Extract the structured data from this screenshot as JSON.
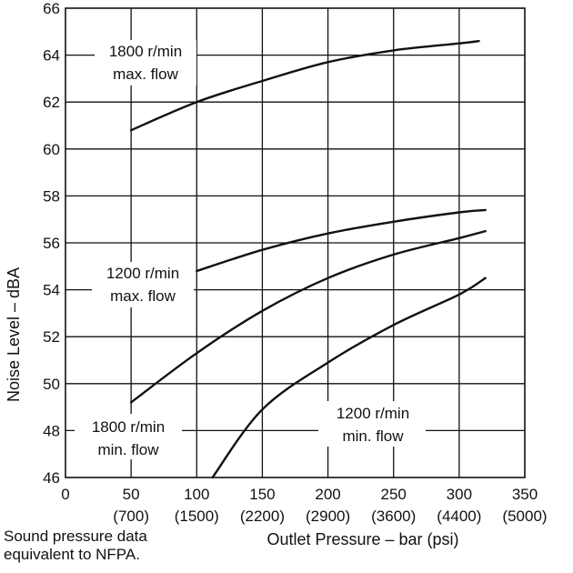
{
  "chart_data": {
    "type": "line",
    "xlabel": "Outlet Pressure – bar (psi)",
    "ylabel": "Noise Level – dBA",
    "xlim": [
      0,
      350
    ],
    "ylim": [
      46,
      66
    ],
    "grid": "horizontal",
    "x_ticks": [
      {
        "value": 0,
        "label": "0",
        "psi": ""
      },
      {
        "value": 50,
        "label": "50",
        "psi": "(700)"
      },
      {
        "value": 100,
        "label": "100",
        "psi": "(1500)"
      },
      {
        "value": 150,
        "label": "150",
        "psi": "(2200)"
      },
      {
        "value": 200,
        "label": "200",
        "psi": "(2900)"
      },
      {
        "value": 250,
        "label": "250",
        "psi": "(3600)"
      },
      {
        "value": 300,
        "label": "300",
        "psi": "(4400)"
      },
      {
        "value": 350,
        "label": "350",
        "psi": "(5000)"
      }
    ],
    "y_ticks": [
      46,
      48,
      50,
      52,
      54,
      56,
      58,
      60,
      62,
      64,
      66
    ],
    "series": [
      {
        "name": "1800 r/min max. flow",
        "label_lines": [
          "1800 r/min",
          "max. flow"
        ],
        "x": [
          50,
          100,
          150,
          200,
          250,
          300,
          315
        ],
        "y": [
          60.8,
          62.0,
          62.9,
          63.7,
          64.2,
          64.5,
          64.6
        ]
      },
      {
        "name": "1200 r/min max. flow",
        "label_lines": [
          "1200 r/min",
          "max. flow"
        ],
        "x": [
          100,
          150,
          200,
          250,
          300,
          320
        ],
        "y": [
          54.8,
          55.7,
          56.4,
          56.9,
          57.3,
          57.4
        ]
      },
      {
        "name": "1800 r/min min. flow",
        "label_lines": [
          "1800 r/min",
          "min. flow"
        ],
        "x": [
          50,
          100,
          150,
          200,
          250,
          300,
          320
        ],
        "y": [
          49.2,
          51.3,
          53.1,
          54.5,
          55.5,
          56.2,
          56.5
        ]
      },
      {
        "name": "1200 r/min min. flow",
        "label_lines": [
          "1200 r/min",
          "min. flow"
        ],
        "x": [
          112,
          150,
          200,
          250,
          300,
          320
        ],
        "y": [
          46.0,
          48.9,
          50.9,
          52.5,
          53.8,
          54.5
        ]
      }
    ]
  },
  "footnote": {
    "line1": "Sound pressure data",
    "line2": "equivalent to  NFPA."
  }
}
